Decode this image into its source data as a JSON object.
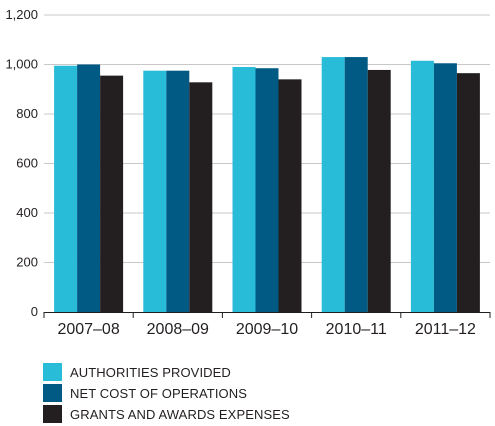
{
  "chart_data": {
    "type": "bar",
    "title": "",
    "xlabel": "",
    "ylabel": "",
    "ylim": [
      0,
      1200
    ],
    "yticks": [
      0,
      200,
      400,
      600,
      800,
      1000,
      1200
    ],
    "ytick_labels": [
      "0",
      "200",
      "400",
      "600",
      "800",
      "1,000",
      "1,200"
    ],
    "grid": true,
    "legend_position": "bottom-left",
    "categories": [
      "2007–08",
      "2008–09",
      "2009–10",
      "2010–11",
      "2011–12"
    ],
    "series": [
      {
        "name": "AUTHORITIES PROVIDED",
        "color": "#29bcd8",
        "values": [
          995,
          975,
          990,
          1030,
          1015
        ]
      },
      {
        "name": "NET COST OF OPERATIONS",
        "color": "#005a84",
        "values": [
          1000,
          975,
          985,
          1030,
          1005
        ]
      },
      {
        "name": "GRANTS AND AWARDS EXPENSES",
        "color": "#231f20",
        "values": [
          955,
          928,
          940,
          978,
          965
        ]
      }
    ]
  }
}
